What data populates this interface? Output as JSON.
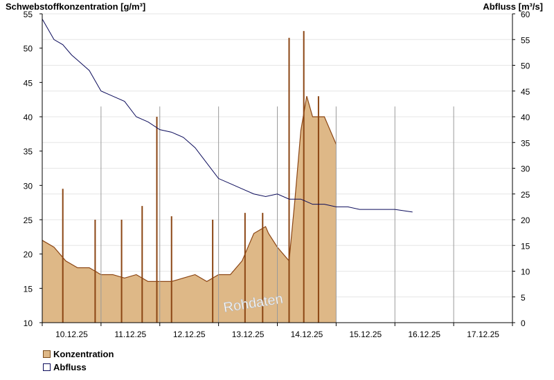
{
  "chart_data": {
    "type": "bar+line",
    "left_axis": {
      "label": "Schwebstoffkonzentration [g/m³]",
      "ylim": [
        10,
        55
      ],
      "ticks": [
        10,
        15,
        20,
        25,
        30,
        35,
        40,
        45,
        50,
        55
      ]
    },
    "right_axis": {
      "label": "Abfluss [m³/s]",
      "ylim": [
        0,
        60
      ],
      "ticks": [
        0,
        5,
        10,
        15,
        20,
        25,
        30,
        35,
        40,
        45,
        50,
        55,
        60
      ]
    },
    "x_tick_labels": [
      "10.12.25",
      "11.12.25",
      "12.12.25",
      "13.12.25",
      "14.12.25",
      "15.12.25",
      "16.12.25",
      "17.12.25"
    ],
    "x_range_days": [
      0,
      8
    ],
    "annotation": "Rohdaten",
    "grid": true,
    "series": [
      {
        "name": "Konzentration",
        "type": "bar",
        "color": "#deb887",
        "edge_color": "#8b4513",
        "x_days": [
          0.0,
          0.2,
          0.4,
          0.6,
          0.8,
          1.0,
          1.2,
          1.4,
          1.6,
          1.8,
          2.0,
          2.2,
          2.4,
          2.6,
          2.8,
          3.0,
          3.2,
          3.4,
          3.6,
          3.8,
          3.85,
          4.0,
          4.2,
          4.3,
          4.4,
          4.5,
          4.6,
          4.8,
          5.0
        ],
        "values": [
          22,
          21,
          19,
          18,
          18,
          17,
          17,
          16.5,
          17,
          16,
          16,
          16,
          16.5,
          17,
          16,
          17,
          17,
          19,
          23,
          24,
          23,
          21,
          19,
          28,
          38,
          43,
          40,
          40,
          36
        ],
        "spikes": [
          {
            "x_days": 0.35,
            "value": 29.5
          },
          {
            "x_days": 0.9,
            "value": 25
          },
          {
            "x_days": 1.35,
            "value": 25
          },
          {
            "x_days": 1.7,
            "value": 27
          },
          {
            "x_days": 1.95,
            "value": 40
          },
          {
            "x_days": 2.2,
            "value": 25.5
          },
          {
            "x_days": 2.9,
            "value": 25
          },
          {
            "x_days": 3.45,
            "value": 26
          },
          {
            "x_days": 3.75,
            "value": 26
          },
          {
            "x_days": 4.2,
            "value": 51.5
          },
          {
            "x_days": 4.45,
            "value": 52.5
          },
          {
            "x_days": 4.7,
            "value": 43
          }
        ]
      },
      {
        "name": "Abfluss",
        "type": "line",
        "color": "#0a0a5a",
        "x_days": [
          0,
          0.1,
          0.2,
          0.35,
          0.5,
          0.6,
          0.8,
          1.0,
          1.2,
          1.4,
          1.6,
          1.8,
          2.0,
          2.2,
          2.4,
          2.6,
          2.8,
          3.0,
          3.2,
          3.4,
          3.6,
          3.8,
          4.0,
          4.2,
          4.4,
          4.6,
          4.8,
          5.0,
          5.2,
          5.4,
          5.6,
          5.8,
          6.0,
          6.3
        ],
        "values": [
          59,
          57,
          55,
          54,
          52,
          51,
          49,
          45,
          44,
          43,
          40,
          39,
          37.5,
          37,
          36,
          34,
          31,
          28,
          27,
          26,
          25,
          24.5,
          25,
          24,
          24,
          23,
          23,
          22.5,
          22.5,
          22,
          22,
          22,
          22,
          21.5
        ]
      }
    ]
  }
}
